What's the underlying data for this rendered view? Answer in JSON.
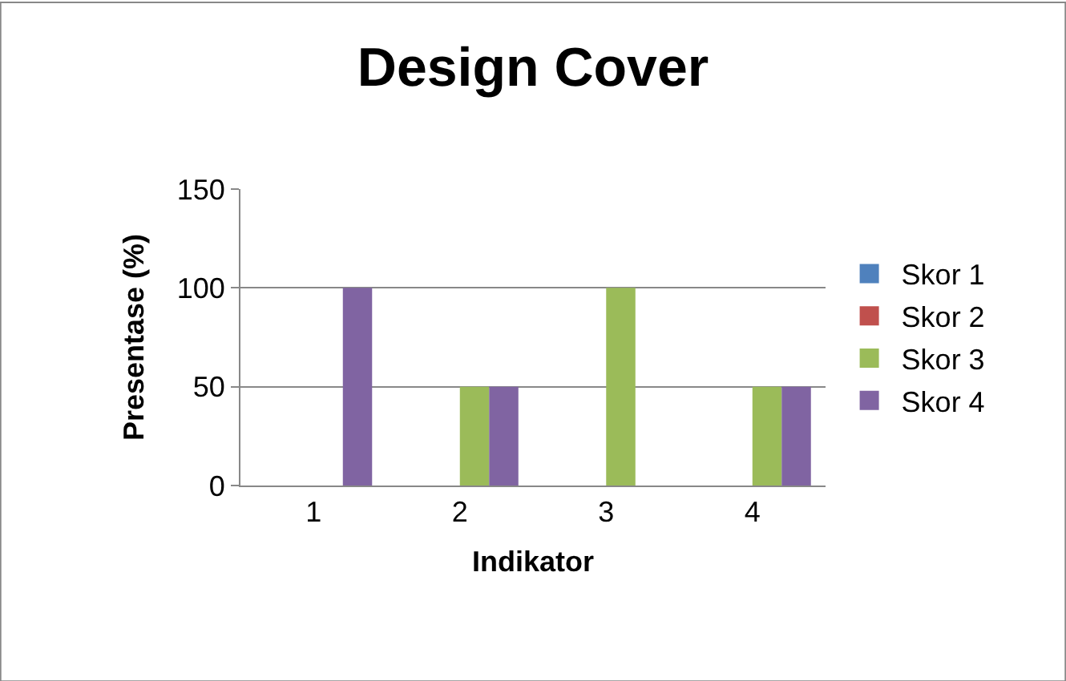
{
  "chart_data": {
    "type": "bar",
    "title": "Design Cover",
    "xlabel": "Indikator",
    "ylabel": "Presentase (%)",
    "categories": [
      "1",
      "2",
      "3",
      "4"
    ],
    "series": [
      {
        "name": "Skor 1",
        "color": "#4f81bd",
        "values": [
          0,
          0,
          0,
          0
        ]
      },
      {
        "name": "Skor 2",
        "color": "#c0504d",
        "values": [
          0,
          0,
          0,
          0
        ]
      },
      {
        "name": "Skor 3",
        "color": "#9bbb59",
        "values": [
          0,
          50,
          100,
          50
        ]
      },
      {
        "name": "Skor 4",
        "color": "#8064a2",
        "values": [
          100,
          50,
          0,
          50
        ]
      }
    ],
    "ylim": [
      0,
      150
    ],
    "yticks": [
      0,
      50,
      100,
      150
    ],
    "grid": "y",
    "legend": "right"
  }
}
